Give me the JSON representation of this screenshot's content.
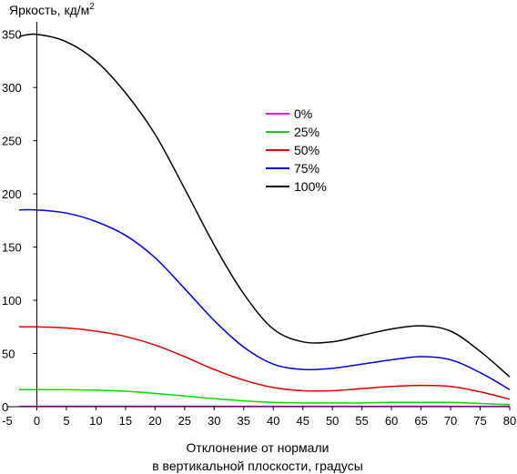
{
  "chart_data": {
    "type": "line",
    "ylabel": "Яркость, кд/м",
    "ylabel_sup": "2",
    "xlabel_line1": "Отклонение от нормали",
    "xlabel_line2": "в вертикальной плоскости, градусы",
    "xlim": [
      -5,
      80
    ],
    "ylim": [
      0,
      360
    ],
    "x_ticks": [
      -5,
      0,
      5,
      10,
      15,
      20,
      25,
      30,
      35,
      40,
      45,
      50,
      55,
      60,
      65,
      70,
      75,
      80
    ],
    "y_ticks": [
      0,
      50,
      100,
      150,
      200,
      250,
      300,
      350
    ],
    "grid": false,
    "legend_position": "center",
    "x": [
      -3,
      0,
      5,
      10,
      15,
      20,
      25,
      30,
      35,
      40,
      45,
      50,
      55,
      60,
      65,
      70,
      75,
      80
    ],
    "series": [
      {
        "name": "0%",
        "color": "#ff00ff",
        "values": [
          0.3,
          0.3,
          0.3,
          0.3,
          0.3,
          0.3,
          0.3,
          0.3,
          0.3,
          0.3,
          0.3,
          0.3,
          0.3,
          0.3,
          0.3,
          0.3,
          0.3,
          0.3
        ]
      },
      {
        "name": "25%",
        "color": "#00dd00",
        "values": [
          16,
          16,
          16,
          15.5,
          14.5,
          12.5,
          10,
          7.5,
          5.5,
          4,
          3.5,
          3.5,
          3.5,
          4,
          4,
          4,
          3,
          2
        ]
      },
      {
        "name": "50%",
        "color": "#dd0000",
        "values": [
          75,
          75,
          74,
          71,
          66,
          58,
          47,
          35,
          25,
          18,
          15,
          15,
          17,
          19,
          20,
          19,
          14,
          7
        ]
      },
      {
        "name": "75%",
        "color": "#0000dd",
        "values": [
          185,
          185,
          182,
          174,
          161,
          140,
          111,
          81,
          56,
          40,
          35,
          36,
          40,
          44,
          47,
          44,
          32,
          16
        ]
      },
      {
        "name": "100%",
        "color": "#000000",
        "values": [
          348,
          350,
          343,
          325,
          295,
          256,
          205,
          152,
          106,
          73,
          61,
          61,
          67,
          73,
          76,
          71,
          52,
          28
        ]
      }
    ]
  }
}
